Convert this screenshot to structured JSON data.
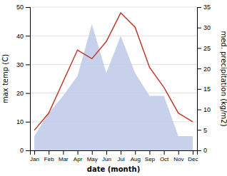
{
  "chart_data": {
    "type": "line",
    "x_label": "date (month)",
    "y_label": "max temp (C)",
    "y2_label": "med. precipitation (kg/m2)",
    "categories": [
      "Jan",
      "Feb",
      "Mar",
      "Apr",
      "May",
      "Jun",
      "Jul",
      "Aug",
      "Sep",
      "Oct",
      "Nov",
      "Dec"
    ],
    "series": [
      {
        "type": "area",
        "color": "#bdc9e8",
        "values": [
          5,
          13,
          19,
          26,
          44,
          27,
          40,
          27,
          19,
          19,
          5,
          5
        ]
      },
      {
        "type": "line",
        "color": "#c0392b",
        "values": [
          7,
          13,
          24,
          35,
          32,
          38,
          48,
          43,
          29,
          22,
          13,
          10
        ]
      }
    ],
    "ylim": [
      0,
      50
    ],
    "yticks": [
      0,
      10,
      20,
      30,
      40,
      50
    ],
    "y2lim": [
      0,
      35
    ],
    "y2ticks": [
      0,
      5,
      10,
      15,
      20,
      25,
      30,
      35
    ],
    "grid": true
  }
}
